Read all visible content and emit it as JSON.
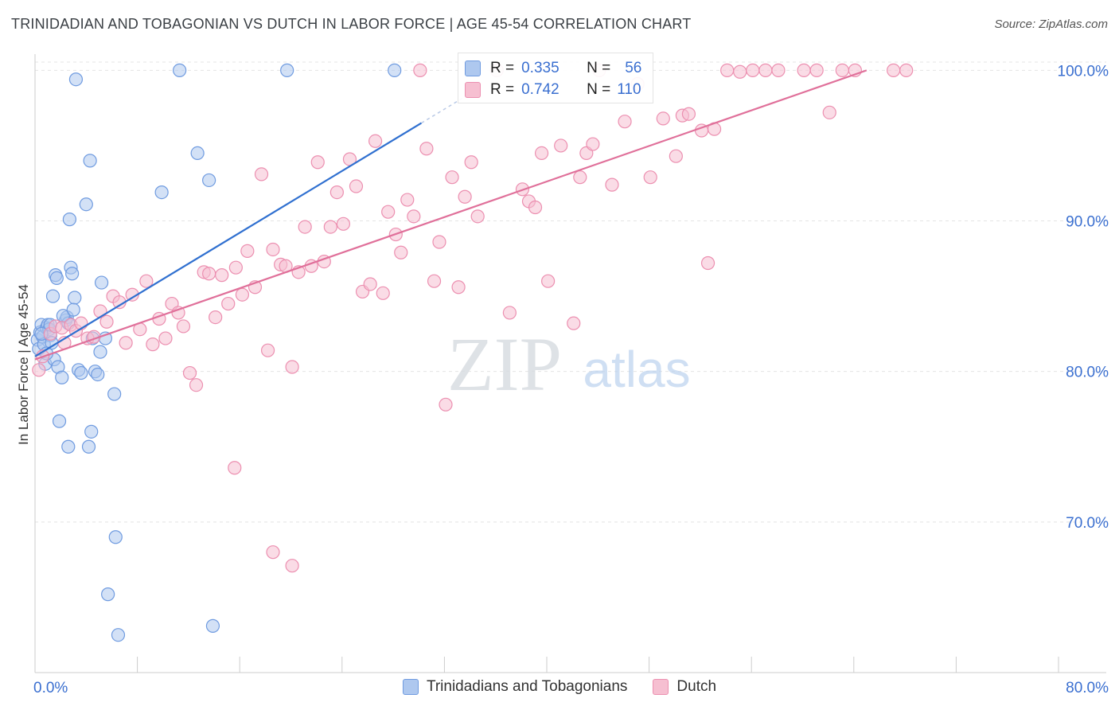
{
  "title": "TRINIDADIAN AND TOBAGONIAN VS DUTCH IN LABOR FORCE | AGE 45-54 CORRELATION CHART",
  "source": "Source: ZipAtlas.com",
  "watermark": {
    "zip": "ZIP",
    "atlas": "atlas"
  },
  "stats": {
    "r_label": "R =",
    "n_label": "N =",
    "series1": {
      "r": "0.335",
      "n": "56"
    },
    "series2": {
      "r": "0.742",
      "n": "110"
    }
  },
  "legend": {
    "series1": "Trinidadians and Tobagonians",
    "series2": "Dutch"
  },
  "colors": {
    "series1_fill": "#aec8ef",
    "series1_stroke": "#6f9be0",
    "series1_line": "#3070d0",
    "series2_fill": "#f6bfd1",
    "series2_stroke": "#ec8fb0",
    "series2_line": "#e0709a",
    "grid": "#e4e4e4",
    "tick_label": "#3a6fd0"
  },
  "chart_data": {
    "type": "scatter",
    "title": "TRINIDADIAN AND TOBAGONIAN VS DUTCH IN LABOR FORCE | AGE 45-54 CORRELATION CHART",
    "xlabel": "",
    "ylabel": "In Labor Force | Age 45-54",
    "xlim": [
      0,
      80
    ],
    "ylim": [
      60.0,
      101.5
    ],
    "x_tick_labels": [
      "0.0%",
      "80.0%"
    ],
    "y_ticks": [
      70,
      80,
      90,
      100
    ],
    "y_tick_labels": [
      "70.0%",
      "80.0%",
      "90.0%",
      "100.0%"
    ],
    "series": [
      {
        "name": "Trinidadians and Tobagonians",
        "points": [
          [
            0.2,
            82.1
          ],
          [
            0.3,
            81.5
          ],
          [
            0.4,
            82.6
          ],
          [
            0.5,
            83.1
          ],
          [
            0.6,
            82.3
          ],
          [
            0.7,
            81.8
          ],
          [
            0.8,
            80.5
          ],
          [
            0.9,
            82.9
          ],
          [
            1.0,
            83.1
          ],
          [
            1.1,
            82.8
          ],
          [
            1.2,
            82.4
          ],
          [
            1.3,
            81.9
          ],
          [
            1.5,
            80.8
          ],
          [
            1.8,
            80.3
          ],
          [
            2.1,
            79.6
          ],
          [
            1.4,
            85.0
          ],
          [
            1.6,
            86.4
          ],
          [
            1.7,
            86.2
          ],
          [
            2.4,
            83.4
          ],
          [
            2.5,
            83.6
          ],
          [
            2.6,
            83.2
          ],
          [
            2.8,
            86.9
          ],
          [
            2.9,
            86.5
          ],
          [
            3.1,
            84.9
          ],
          [
            2.7,
            90.1
          ],
          [
            3.2,
            99.4
          ],
          [
            3.4,
            80.1
          ],
          [
            3.6,
            79.9
          ],
          [
            4.0,
            91.1
          ],
          [
            4.3,
            94.0
          ],
          [
            4.5,
            82.2
          ],
          [
            4.7,
            80.0
          ],
          [
            4.9,
            79.8
          ],
          [
            5.1,
            81.3
          ],
          [
            5.2,
            85.9
          ],
          [
            5.5,
            82.2
          ],
          [
            6.2,
            78.5
          ],
          [
            6.3,
            69.0
          ],
          [
            5.7,
            65.2
          ],
          [
            6.5,
            62.5
          ],
          [
            1.9,
            76.7
          ],
          [
            2.6,
            75.0
          ],
          [
            4.2,
            75.0
          ],
          [
            4.4,
            76.0
          ],
          [
            9.9,
            91.9
          ],
          [
            11.3,
            100.0
          ],
          [
            12.7,
            94.5
          ],
          [
            13.6,
            92.7
          ],
          [
            13.9,
            63.1
          ],
          [
            19.7,
            100.0
          ],
          [
            28.1,
            100.0
          ],
          [
            0.9,
            81.2
          ],
          [
            1.2,
            83.1
          ],
          [
            2.2,
            83.7
          ],
          [
            3.0,
            84.1
          ],
          [
            0.5,
            82.5
          ]
        ],
        "trend": {
          "x": [
            0.0,
            30.2
          ],
          "y": [
            81.0,
            96.5
          ]
        }
      },
      {
        "name": "Dutch",
        "points": [
          [
            0.3,
            80.1
          ],
          [
            0.6,
            81.0
          ],
          [
            1.2,
            82.5
          ],
          [
            1.6,
            83.0
          ],
          [
            2.1,
            82.9
          ],
          [
            2.8,
            83.1
          ],
          [
            3.2,
            82.7
          ],
          [
            3.6,
            83.2
          ],
          [
            4.1,
            82.2
          ],
          [
            4.6,
            82.3
          ],
          [
            5.1,
            84.0
          ],
          [
            5.6,
            83.3
          ],
          [
            6.1,
            85.0
          ],
          [
            6.6,
            84.6
          ],
          [
            7.1,
            81.9
          ],
          [
            7.6,
            85.1
          ],
          [
            8.2,
            82.8
          ],
          [
            8.7,
            86.0
          ],
          [
            9.2,
            81.8
          ],
          [
            9.7,
            83.5
          ],
          [
            10.2,
            82.2
          ],
          [
            10.7,
            84.5
          ],
          [
            11.2,
            83.9
          ],
          [
            11.6,
            83.0
          ],
          [
            12.1,
            79.9
          ],
          [
            12.6,
            79.1
          ],
          [
            13.2,
            86.6
          ],
          [
            13.6,
            86.5
          ],
          [
            14.1,
            83.6
          ],
          [
            14.6,
            86.4
          ],
          [
            15.1,
            84.5
          ],
          [
            15.7,
            86.9
          ],
          [
            16.2,
            85.1
          ],
          [
            16.6,
            88.0
          ],
          [
            17.2,
            85.6
          ],
          [
            17.7,
            93.1
          ],
          [
            18.2,
            81.4
          ],
          [
            18.6,
            88.1
          ],
          [
            19.2,
            87.1
          ],
          [
            19.6,
            87.0
          ],
          [
            20.1,
            80.3
          ],
          [
            20.6,
            86.6
          ],
          [
            21.1,
            89.6
          ],
          [
            21.6,
            87.0
          ],
          [
            22.1,
            93.9
          ],
          [
            22.6,
            87.3
          ],
          [
            23.1,
            89.6
          ],
          [
            23.6,
            91.9
          ],
          [
            24.1,
            89.8
          ],
          [
            24.6,
            94.1
          ],
          [
            25.1,
            92.3
          ],
          [
            25.6,
            85.3
          ],
          [
            26.2,
            85.8
          ],
          [
            26.6,
            95.3
          ],
          [
            27.2,
            85.2
          ],
          [
            27.6,
            90.6
          ],
          [
            28.2,
            89.1
          ],
          [
            28.6,
            87.9
          ],
          [
            29.1,
            91.4
          ],
          [
            29.6,
            90.3
          ],
          [
            30.1,
            100.0
          ],
          [
            30.6,
            94.8
          ],
          [
            31.2,
            86.0
          ],
          [
            31.6,
            88.6
          ],
          [
            32.1,
            77.8
          ],
          [
            32.6,
            92.9
          ],
          [
            33.1,
            85.6
          ],
          [
            33.6,
            91.6
          ],
          [
            34.1,
            93.9
          ],
          [
            34.6,
            90.3
          ],
          [
            36.1,
            100.0
          ],
          [
            37.1,
            83.9
          ],
          [
            38.1,
            92.1
          ],
          [
            38.6,
            91.3
          ],
          [
            39.1,
            90.9
          ],
          [
            39.6,
            94.5
          ],
          [
            40.1,
            86.0
          ],
          [
            41.1,
            95.0
          ],
          [
            42.1,
            83.2
          ],
          [
            42.6,
            92.9
          ],
          [
            43.1,
            94.5
          ],
          [
            43.6,
            95.1
          ],
          [
            44.1,
            100.0
          ],
          [
            45.1,
            92.4
          ],
          [
            46.1,
            96.6
          ],
          [
            47.1,
            99.1
          ],
          [
            48.1,
            92.9
          ],
          [
            49.1,
            96.8
          ],
          [
            50.1,
            94.3
          ],
          [
            50.6,
            97.0
          ],
          [
            51.1,
            97.1
          ],
          [
            52.1,
            96.0
          ],
          [
            52.6,
            87.2
          ],
          [
            53.1,
            96.1
          ],
          [
            54.1,
            100.0
          ],
          [
            55.1,
            99.9
          ],
          [
            56.1,
            100.0
          ],
          [
            57.1,
            100.0
          ],
          [
            58.1,
            100.0
          ],
          [
            60.1,
            100.0
          ],
          [
            61.1,
            100.0
          ],
          [
            62.1,
            97.2
          ],
          [
            63.1,
            100.0
          ],
          [
            64.1,
            100.0
          ],
          [
            67.1,
            100.0
          ],
          [
            68.1,
            100.0
          ],
          [
            15.6,
            73.6
          ],
          [
            18.6,
            68.0
          ],
          [
            20.1,
            67.1
          ],
          [
            2.3,
            81.9
          ]
        ],
        "trend": {
          "x": [
            0.0,
            65.0
          ],
          "y": [
            80.8,
            100.0
          ]
        }
      }
    ],
    "grid": true,
    "legend_position": "bottom"
  }
}
